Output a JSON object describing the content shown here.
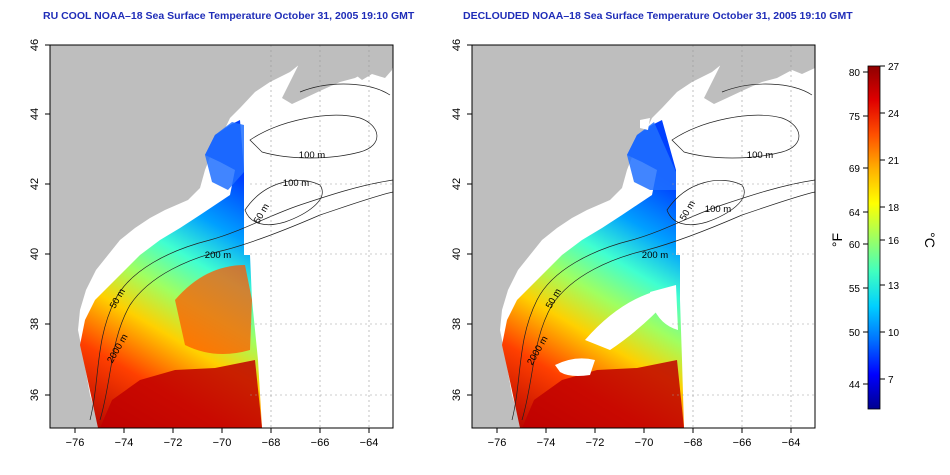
{
  "titles": {
    "left": "RU COOL NOAA–18 Sea Surface Temperature October 31, 2005 19:10 GMT",
    "right": "DECLOUDED NOAA–18 Sea Surface Temperature October 31, 2005 19:10 GMT"
  },
  "axes": {
    "x_ticks": [
      "−76",
      "−74",
      "−72",
      "−70",
      "−68",
      "−66",
      "−64"
    ],
    "y_ticks": [
      "36",
      "38",
      "40",
      "42",
      "44",
      "46"
    ]
  },
  "contour_labels": [
    "100 m",
    "100 m",
    "50 m",
    "200 m",
    "50 m",
    "2000 m"
  ],
  "colorbar": {
    "fahrenheit_ticks": [
      "80",
      "75",
      "69",
      "64",
      "60",
      "55",
      "50",
      "44"
    ],
    "celsius_ticks": [
      "27",
      "24",
      "21",
      "18",
      "16",
      "13",
      "10",
      "7"
    ],
    "fahrenheit_label": "°F",
    "celsius_label": "°C"
  },
  "colors": {
    "land": "#bebebe",
    "title": "#1f2db8",
    "scale": [
      "#00008f",
      "#0000ff",
      "#0070ff",
      "#00d0ff",
      "#40ffc0",
      "#a0ff60",
      "#ffff00",
      "#ffb000",
      "#ff5000",
      "#e00000",
      "#8f0000"
    ]
  }
}
